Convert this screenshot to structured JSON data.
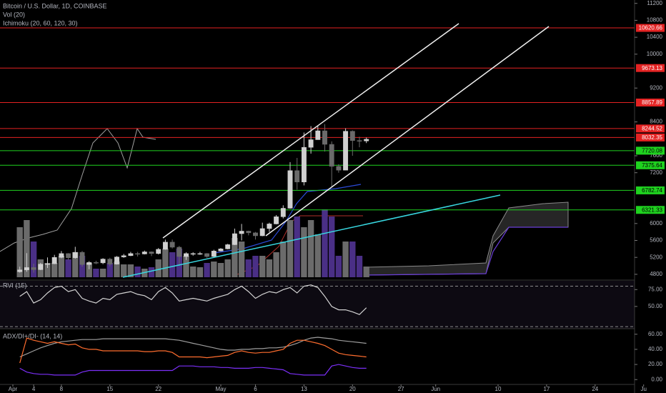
{
  "chart_data": [
    {
      "type": "candlestick",
      "title": "Bitcoin / U.S. Dollar, 1D, COINBASE",
      "volume_title": "Vol (20)",
      "indicator_title": "Ichimoku (20, 60, 120, 30)",
      "x": [
        "04-02",
        "04-03",
        "04-04",
        "04-05",
        "04-06",
        "04-07",
        "04-08",
        "04-09",
        "04-10",
        "04-11",
        "04-12",
        "04-13",
        "04-14",
        "04-15",
        "04-16",
        "04-17",
        "04-18",
        "04-19",
        "04-20",
        "04-21",
        "04-22",
        "04-23",
        "04-24",
        "04-25",
        "04-26",
        "04-27",
        "04-28",
        "04-29",
        "04-30",
        "05-01",
        "05-02",
        "05-03",
        "05-04",
        "05-05",
        "05-06",
        "05-07",
        "05-08",
        "05-09",
        "05-10",
        "05-11",
        "05-12",
        "05-13",
        "05-14",
        "05-15",
        "05-16",
        "05-17",
        "05-18",
        "05-19",
        "05-20",
        "05-21",
        "05-22"
      ],
      "open": [
        4860,
        4905,
        4960,
        4910,
        5040,
        5050,
        5200,
        5290,
        5190,
        5320,
        5030,
        5080,
        5070,
        5160,
        5040,
        5210,
        5240,
        5290,
        5280,
        5330,
        5290,
        5390,
        5560,
        5440,
        5220,
        5290,
        5290,
        5290,
        5220,
        5350,
        5400,
        5500,
        5760,
        5820,
        5780,
        5710,
        5880,
        5990,
        6160,
        6360,
        7250,
        6980,
        7800,
        7980,
        8190,
        7870,
        7350,
        7260,
        8180,
        7960,
        7950
      ],
      "high": [
        4980,
        5300,
        5050,
        5070,
        5200,
        5260,
        5350,
        5300,
        5450,
        5350,
        5110,
        5120,
        5180,
        5190,
        5230,
        5280,
        5330,
        5330,
        5360,
        5340,
        5420,
        5620,
        5620,
        5470,
        5320,
        5320,
        5330,
        5300,
        5380,
        5420,
        5520,
        5880,
        5990,
        5830,
        5800,
        6020,
        6020,
        6200,
        6430,
        7450,
        7550,
        8150,
        8300,
        8300,
        8350,
        7940,
        7400,
        8250,
        8200,
        8050,
        8030
      ],
      "low": [
        4840,
        4860,
        4840,
        4900,
        4950,
        5040,
        5180,
        5140,
        5170,
        4980,
        4920,
        5040,
        5040,
        4990,
        5030,
        5190,
        5230,
        5220,
        5270,
        5230,
        5270,
        5380,
        5410,
        5000,
        5140,
        5240,
        5260,
        5190,
        5210,
        5340,
        5390,
        5490,
        5600,
        5720,
        5620,
        5700,
        5800,
        5980,
        6120,
        6350,
        6800,
        6900,
        7650,
        7980,
        7700,
        6850,
        7200,
        7260,
        7600,
        7800,
        7900
      ],
      "close": [
        4905,
        4960,
        4910,
        5040,
        5050,
        5200,
        5290,
        5190,
        5320,
        5030,
        5080,
        5070,
        5160,
        5040,
        5210,
        5240,
        5290,
        5280,
        5330,
        5290,
        5390,
        5560,
        5440,
        5220,
        5290,
        5290,
        5290,
        5220,
        5350,
        5400,
        5500,
        5760,
        5820,
        5780,
        5710,
        5880,
        5990,
        6160,
        6360,
        7250,
        6980,
        7800,
        7980,
        8190,
        7870,
        7350,
        7260,
        8180,
        7960,
        7950,
        7990
      ],
      "volume": [
        70,
        80,
        50,
        25,
        20,
        20,
        30,
        25,
        35,
        30,
        20,
        12,
        12,
        20,
        22,
        18,
        18,
        15,
        12,
        14,
        25,
        40,
        35,
        40,
        30,
        15,
        14,
        20,
        22,
        20,
        25,
        55,
        50,
        25,
        30,
        30,
        25,
        35,
        50,
        80,
        85,
        70,
        80,
        60,
        95,
        85,
        30,
        50,
        50,
        30,
        15
      ],
      "volume_ylim": [
        0,
        100
      ],
      "up_color": "#d0d0d0",
      "down_color": "#6a6a6a",
      "volume_up_color": "#6b6b6b",
      "volume_down_color": "#4a2f86",
      "ylim": [
        4680,
        11280
      ],
      "yticks": [
        11200,
        10800,
        10400,
        10000,
        9200,
        8400,
        7600,
        7200,
        6000,
        5600,
        5200,
        4800
      ],
      "levels": [
        {
          "value": 10620.66,
          "color": "#e32222"
        },
        {
          "value": 9673.13,
          "color": "#e32222"
        },
        {
          "value": 8857.89,
          "color": "#e32222"
        },
        {
          "value": 8244.52,
          "color": "#e32222"
        },
        {
          "value": 8032.35,
          "color": "#e32222"
        },
        {
          "value": 7720.08,
          "color": "#1fd21f"
        },
        {
          "value": 7375.64,
          "color": "#1fd21f"
        },
        {
          "value": 6782.74,
          "color": "#1fd21f"
        },
        {
          "value": 6321.33,
          "color": "#1fd21f"
        }
      ],
      "xticks": [
        {
          "value": "04-01",
          "label": "Apr"
        },
        {
          "value": "04-04",
          "label": "4"
        },
        {
          "value": "04-08",
          "label": "8"
        },
        {
          "value": "04-15",
          "label": "15"
        },
        {
          "value": "04-22",
          "label": "22"
        },
        {
          "value": "05-01",
          "label": "May"
        },
        {
          "value": "05-06",
          "label": "6"
        },
        {
          "value": "05-13",
          "label": "13"
        },
        {
          "value": "05-20",
          "label": "20"
        },
        {
          "value": "05-27",
          "label": "27"
        },
        {
          "value": "06-01",
          "label": "Jun"
        },
        {
          "value": "06-10",
          "label": "10"
        },
        {
          "value": "06-17",
          "label": "17"
        },
        {
          "value": "06-24",
          "label": "24"
        },
        {
          "value": "07-01",
          "label": "Ju"
        }
      ]
    },
    {
      "type": "line",
      "title": "RVI (15)",
      "series": [
        {
          "color": "#d4d4d4",
          "values": [
            65,
            72,
            55,
            60,
            70,
            78,
            80,
            72,
            75,
            62,
            58,
            55,
            62,
            60,
            68,
            70,
            72,
            68,
            66,
            60,
            72,
            78,
            70,
            58,
            60,
            62,
            60,
            58,
            62,
            65,
            68,
            75,
            80,
            72,
            62,
            68,
            72,
            70,
            75,
            78,
            70,
            80,
            82,
            78,
            65,
            50,
            45,
            45,
            42,
            38,
            48
          ]
        }
      ],
      "bands": [
        80,
        20
      ],
      "ylim": [
        17,
        88
      ],
      "yticks": [
        {
          "value": 75,
          "label": "75.00"
        },
        {
          "value": 50,
          "label": "50.00"
        }
      ]
    },
    {
      "type": "line",
      "title": "ADX/DI+/DI- (14, 14)",
      "series": [
        {
          "color": "#9e9e9e",
          "values": [
            30,
            34,
            38,
            42,
            45,
            48,
            50,
            51,
            52,
            53,
            53,
            53,
            54,
            54,
            54,
            54,
            54,
            54,
            54,
            54,
            54,
            54,
            53,
            52,
            50,
            48,
            46,
            44,
            42,
            40,
            39,
            39,
            40,
            40,
            41,
            41,
            42,
            42,
            43,
            45,
            48,
            52,
            55,
            56,
            55,
            54,
            52,
            51,
            50,
            49,
            48
          ]
        },
        {
          "color": "#ff6d2e",
          "values": [
            22,
            55,
            52,
            50,
            48,
            50,
            48,
            46,
            47,
            42,
            40,
            40,
            38,
            38,
            38,
            38,
            38,
            38,
            37,
            37,
            38,
            38,
            36,
            30,
            30,
            30,
            30,
            29,
            30,
            31,
            32,
            36,
            38,
            36,
            35,
            36,
            36,
            38,
            40,
            48,
            52,
            52,
            50,
            48,
            45,
            40,
            35,
            33,
            32,
            31,
            30
          ]
        },
        {
          "color": "#7b2ff7",
          "values": [
            15,
            10,
            8,
            7,
            7,
            6,
            6,
            6,
            6,
            10,
            12,
            12,
            12,
            12,
            12,
            12,
            12,
            12,
            12,
            12,
            12,
            12,
            12,
            18,
            18,
            18,
            17,
            17,
            17,
            16,
            16,
            15,
            15,
            15,
            16,
            16,
            15,
            14,
            13,
            8,
            7,
            6,
            6,
            6,
            6,
            18,
            20,
            18,
            16,
            15,
            15
          ]
        }
      ],
      "ylim": [
        -6.4,
        66.4
      ],
      "yticks": [
        {
          "value": 60,
          "label": "60.00"
        },
        {
          "value": 40,
          "label": "40.00"
        },
        {
          "value": 20,
          "label": "20.00"
        },
        {
          "value": 0,
          "label": "0.00"
        }
      ]
    }
  ]
}
